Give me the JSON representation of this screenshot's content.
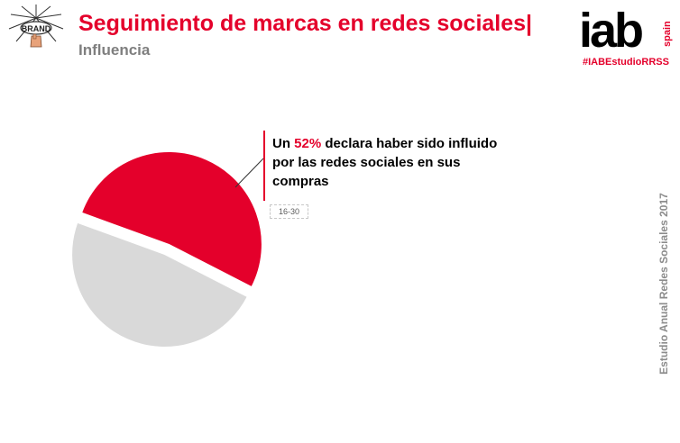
{
  "header": {
    "title": "Seguimiento de marcas en redes sociales|",
    "subtitle": "Influencia",
    "brand_logo_text": "BRAND"
  },
  "logo": {
    "main": "iab",
    "sub": "spain",
    "hashtag": "#IABEstudioRRSS"
  },
  "side_text": "Estudio Anual Redes Sociales 2017",
  "callout": {
    "prefix": "Un ",
    "percent": "52%",
    "suffix": " declara haber sido influido por las redes sociales en sus compras"
  },
  "colors": {
    "accent": "#e4002b",
    "grey_slice": "#d9d9d9",
    "title_grey": "#7f7f7f"
  },
  "chart_data": {
    "type": "pie",
    "label": "16-30",
    "categories": [
      "",
      ""
    ],
    "values": [
      52,
      48
    ],
    "colors": [
      "#e4002b",
      "#d9d9d9"
    ],
    "exploded": true
  }
}
